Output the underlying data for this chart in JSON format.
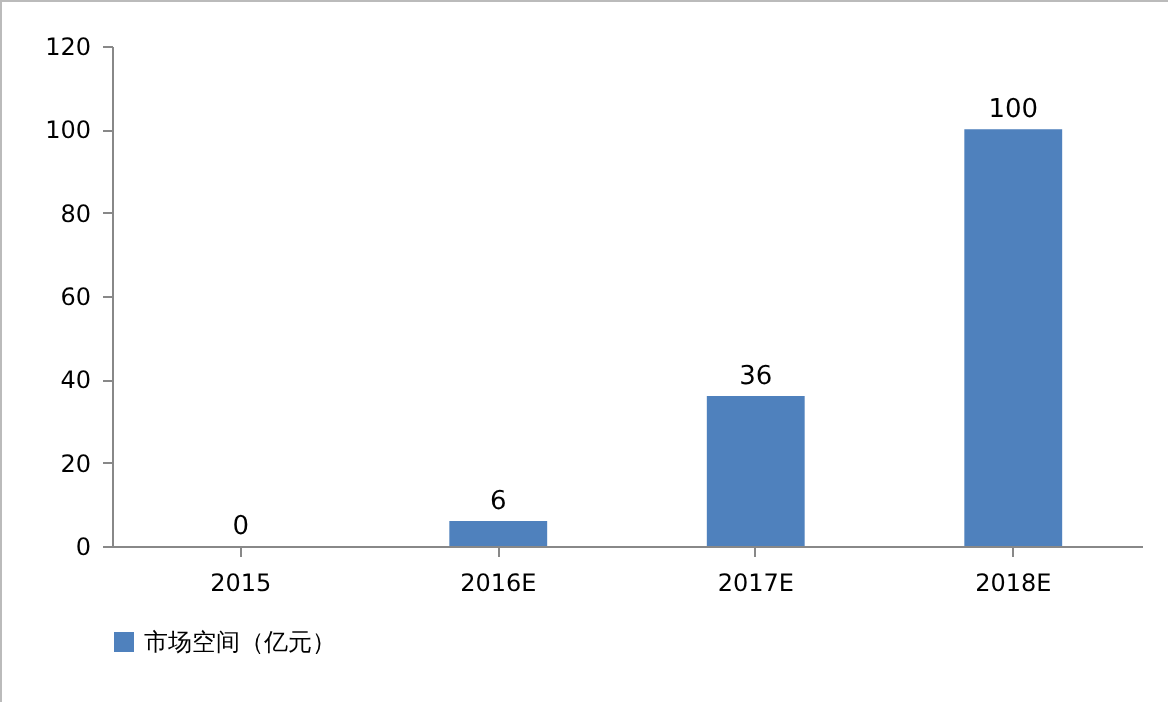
{
  "chart_data": {
    "type": "bar",
    "categories": [
      "2015",
      "2016E",
      "2017E",
      "2018E"
    ],
    "series": [
      {
        "name": "市场空间（亿元）",
        "color": "#4f81bd",
        "values": [
          0,
          6,
          36,
          100
        ]
      }
    ],
    "ylim": [
      0,
      120
    ],
    "yticks": [
      0,
      20,
      40,
      60,
      80,
      100,
      120
    ],
    "grid": false,
    "legend": "bottom",
    "data_labels": true
  }
}
